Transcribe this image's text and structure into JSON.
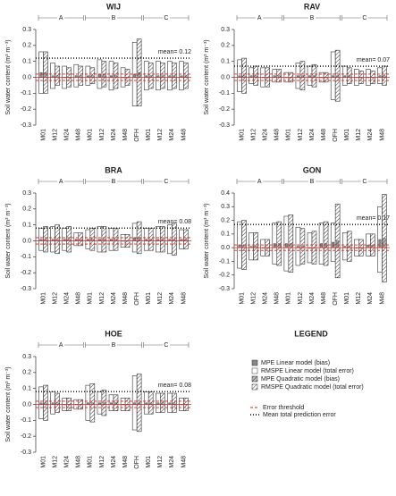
{
  "chart_data": [
    {
      "type": "bar",
      "title": "WIJ",
      "y_label": "Soil water content (m³ m⁻³)",
      "categories": [
        "M01",
        "M12",
        "M24",
        "M48",
        "M01",
        "M12",
        "M24",
        "M48",
        "OFH",
        "M01",
        "M12",
        "M24",
        "M48"
      ],
      "category_groups": [
        "A",
        "A",
        "A",
        "A",
        "B",
        "B",
        "B",
        "B",
        "B",
        "C",
        "C",
        "C",
        "C"
      ],
      "ylim": [
        -0.3,
        0.3
      ],
      "yticks": [
        -0.3,
        -0.2,
        -0.1,
        {
          "value": 0,
          "label": "0.0"
        },
        0.1,
        0.2,
        0.3
      ],
      "mean": {
        "value": 0.12,
        "label": "mean= 0.12"
      },
      "threshold": 0.02,
      "series": [
        {
          "values": [
            0.03,
            0.01,
            0.0,
            0.01,
            0.01,
            0.02,
            0.01,
            0.0,
            0.02,
            0.01,
            0.01,
            0.01,
            0.01
          ]
        },
        {
          "values": [
            0.13,
            0.08,
            0.07,
            0.07,
            0.06,
            0.09,
            0.09,
            0.06,
            0.2,
            0.09,
            0.09,
            0.09,
            0.09
          ]
        },
        {
          "values": [
            0.03,
            0.01,
            0.0,
            0.01,
            0.01,
            0.02,
            0.01,
            0.0,
            0.03,
            0.01,
            0.01,
            0.01,
            0.01
          ]
        },
        {
          "values": [
            0.13,
            0.06,
            0.06,
            0.06,
            0.05,
            0.08,
            0.08,
            0.05,
            0.21,
            0.08,
            0.08,
            0.08,
            0.08
          ]
        }
      ]
    },
    {
      "type": "bar",
      "title": "RAV",
      "y_label": "Soil water content (m³ m⁻³)",
      "categories": [
        "M01",
        "M12",
        "M24",
        "M48",
        "M01",
        "M12",
        "M24",
        "M48",
        "OFH",
        "M01",
        "M12",
        "M24",
        "M48"
      ],
      "category_groups": [
        "A",
        "A",
        "A",
        "A",
        "B",
        "B",
        "B",
        "B",
        "B",
        "C",
        "C",
        "C",
        "C"
      ],
      "ylim": [
        -0.3,
        0.3
      ],
      "yticks": [
        -0.3,
        -0.2,
        -0.1,
        {
          "value": 0,
          "label": "0.0"
        },
        0.1,
        0.2,
        0.3
      ],
      "mean": {
        "value": 0.07,
        "label": "mean= 0.07"
      },
      "threshold": 0.02,
      "series": [
        {
          "values": [
            0.01,
            0.01,
            0.0,
            0.01,
            0.0,
            0.01,
            0.01,
            0.0,
            0.01,
            0.01,
            0.0,
            0.0,
            0.01
          ]
        },
        {
          "values": [
            0.1,
            0.05,
            0.06,
            0.04,
            0.03,
            0.08,
            0.06,
            0.03,
            0.15,
            0.06,
            0.05,
            0.05,
            0.05
          ]
        },
        {
          "values": [
            0.01,
            0.01,
            0.0,
            0.01,
            0.0,
            0.01,
            0.01,
            0.0,
            0.01,
            0.01,
            0.0,
            0.0,
            0.01
          ]
        },
        {
          "values": [
            0.11,
            0.06,
            0.06,
            0.04,
            0.03,
            0.09,
            0.07,
            0.03,
            0.16,
            0.05,
            0.04,
            0.04,
            0.06
          ]
        }
      ]
    },
    {
      "type": "bar",
      "title": "BRA",
      "y_label": "Soil water content (m³ m⁻³)",
      "categories": [
        "M01",
        "M12",
        "M24",
        "M48",
        "M01",
        "M12",
        "M24",
        "M48",
        "OFH",
        "M01",
        "M12",
        "M24",
        "M48"
      ],
      "category_groups": [
        "A",
        "A",
        "A",
        "A",
        "B",
        "B",
        "B",
        "B",
        "B",
        "C",
        "C",
        "C",
        "C"
      ],
      "ylim": [
        -0.3,
        0.3
      ],
      "yticks": [
        -0.3,
        -0.2,
        -0.1,
        {
          "value": 0,
          "label": "0.0"
        },
        0.1,
        0.2,
        0.3
      ],
      "mean": {
        "value": 0.08,
        "label": "mean= 0.08"
      },
      "threshold": 0.02,
      "series": [
        {
          "values": [
            0.01,
            0.01,
            0.01,
            0.01,
            0.01,
            0.01,
            0.01,
            0.0,
            0.02,
            0.01,
            0.01,
            0.01,
            0.01
          ]
        },
        {
          "values": [
            0.07,
            0.08,
            0.07,
            0.04,
            0.06,
            0.08,
            0.07,
            0.04,
            0.09,
            0.07,
            0.08,
            0.09,
            0.06
          ]
        },
        {
          "values": [
            0.01,
            0.01,
            0.01,
            0.01,
            0.01,
            0.01,
            0.01,
            0.0,
            0.02,
            0.01,
            0.01,
            0.01,
            0.01
          ]
        },
        {
          "values": [
            0.08,
            0.09,
            0.08,
            0.04,
            0.07,
            0.08,
            0.07,
            0.04,
            0.1,
            0.07,
            0.08,
            0.1,
            0.06
          ]
        }
      ]
    },
    {
      "type": "bar",
      "title": "GON",
      "y_label": "Soil water content (m³ m⁻³)",
      "categories": [
        "M01",
        "M12",
        "M24",
        "M48",
        "M01",
        "M12",
        "M24",
        "M48",
        "OFH",
        "M01",
        "M12",
        "M24",
        "M48"
      ],
      "category_groups": [
        "A",
        "A",
        "A",
        "A",
        "B",
        "B",
        "B",
        "B",
        "B",
        "C",
        "C",
        "C",
        "C"
      ],
      "ylim": [
        -0.3,
        0.4
      ],
      "yticks": [
        -0.3,
        -0.2,
        -0.1,
        {
          "value": 0,
          "label": "0.0"
        },
        0.1,
        0.2,
        0.3,
        0.4
      ],
      "mean": {
        "value": 0.17,
        "label": "mean= 0.17"
      },
      "threshold": 0.02,
      "series": [
        {
          "values": [
            0.02,
            0.01,
            0.0,
            0.03,
            0.03,
            0.01,
            0.0,
            0.03,
            0.04,
            0.01,
            0.0,
            0.02,
            0.06
          ]
        },
        {
          "values": [
            0.17,
            0.1,
            0.06,
            0.15,
            0.2,
            0.14,
            0.11,
            0.15,
            0.14,
            0.1,
            0.06,
            0.08,
            0.24
          ]
        },
        {
          "values": [
            0.02,
            0.01,
            0.0,
            0.03,
            0.03,
            0.01,
            0.0,
            0.03,
            0.05,
            0.01,
            0.0,
            0.02,
            0.07
          ]
        },
        {
          "values": [
            0.18,
            0.1,
            0.06,
            0.16,
            0.21,
            0.13,
            0.12,
            0.16,
            0.27,
            0.11,
            0.06,
            0.08,
            0.32
          ]
        }
      ]
    },
    {
      "type": "bar",
      "title": "HOE",
      "y_label": "Soil water content (m³ m⁻³)",
      "categories": [
        "M01",
        "M12",
        "M24",
        "M48",
        "M01",
        "M12",
        "M24",
        "M48",
        "OFH",
        "M01",
        "M12",
        "M24",
        "M48"
      ],
      "category_groups": [
        "A",
        "A",
        "A",
        "A",
        "B",
        "B",
        "B",
        "B",
        "B",
        "C",
        "C",
        "C",
        "C"
      ],
      "ylim": [
        -0.3,
        0.3
      ],
      "yticks": [
        -0.3,
        -0.2,
        -0.1,
        {
          "value": 0,
          "label": "0.0"
        },
        0.1,
        0.2,
        0.3
      ],
      "mean": {
        "value": 0.08,
        "label": "mean= 0.08"
      },
      "threshold": 0.02,
      "series": [
        {
          "values": [
            0.01,
            0.01,
            0.0,
            0.0,
            0.01,
            0.01,
            0.01,
            0.0,
            0.01,
            0.01,
            0.01,
            0.01,
            0.0
          ]
        },
        {
          "values": [
            0.1,
            0.07,
            0.04,
            0.03,
            0.11,
            0.07,
            0.05,
            0.04,
            0.17,
            0.07,
            0.06,
            0.06,
            0.04
          ]
        },
        {
          "values": [
            0.01,
            0.01,
            0.0,
            0.0,
            0.01,
            0.01,
            0.01,
            0.0,
            0.01,
            0.01,
            0.01,
            0.01,
            0.0
          ]
        },
        {
          "values": [
            0.11,
            0.06,
            0.04,
            0.03,
            0.12,
            0.08,
            0.05,
            0.04,
            0.18,
            0.07,
            0.06,
            0.06,
            0.04
          ]
        }
      ]
    }
  ],
  "legend": {
    "title": "LEGEND",
    "series": [
      {
        "name": "MPE Linear model (bias)",
        "color": "#888888",
        "pattern": "solid"
      },
      {
        "name": "RMSPE Linear model (total error)",
        "color": "#ffffff",
        "pattern": "solid"
      },
      {
        "name": "MPE Quadratic model (bias)",
        "color": "#bbbbbb",
        "pattern": "hatch"
      },
      {
        "name": "RMSPE Quadratic model (total error)",
        "color": "#ffffff",
        "pattern": "hatch"
      }
    ],
    "threshold_label": "Error threshold",
    "mean_label": "Mean total prediction error"
  }
}
